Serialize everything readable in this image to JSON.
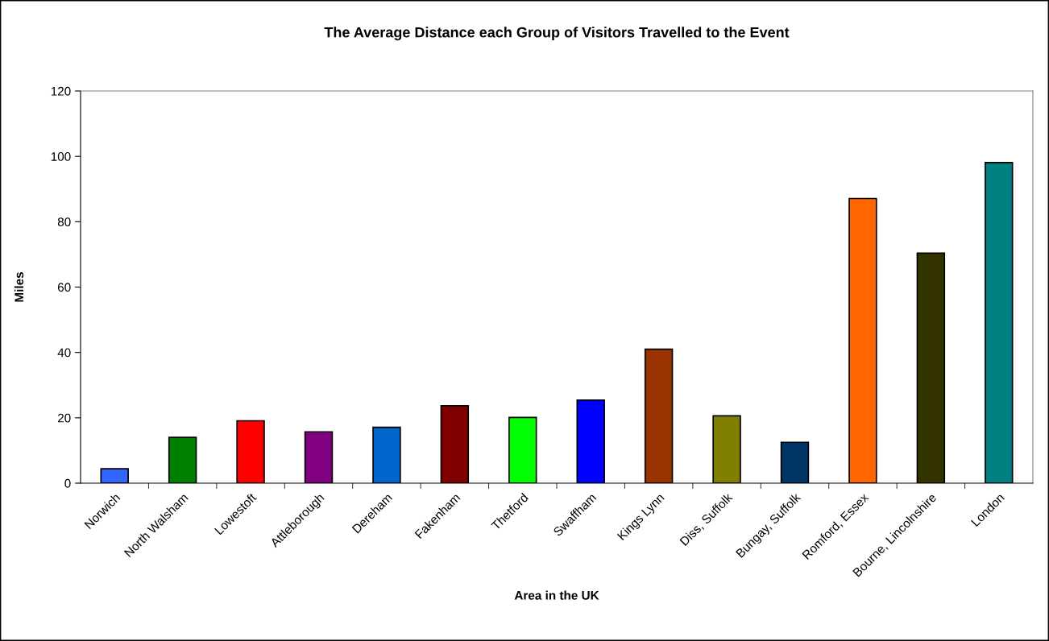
{
  "chart_data": {
    "type": "bar",
    "title": "The Average Distance each Group of Visitors Travelled to the Event",
    "xlabel": "Area in the UK",
    "ylabel": "Miles",
    "categories": [
      "Norwich",
      "North Walsham",
      "Lowestoft",
      "Attleborough",
      "Dereham",
      "Fakenham",
      "Thetford",
      "Swaffham",
      "Kings Lynn",
      "Diss, Suffolk",
      "Bungay, Suffolk",
      "Romford, Essex",
      "Bourne, Lincolnshire",
      "London"
    ],
    "values": [
      4.4,
      14.0,
      19.1,
      15.7,
      17.1,
      23.7,
      20.1,
      25.4,
      41.0,
      20.6,
      12.5,
      87.1,
      70.4,
      98.1
    ],
    "colors": [
      "#3366ff",
      "#008000",
      "#ff0000",
      "#800080",
      "#0066cc",
      "#800000",
      "#00ff00",
      "#0000ff",
      "#993300",
      "#808000",
      "#003366",
      "#ff6600",
      "#333300",
      "#008080"
    ],
    "ylim": [
      0,
      120
    ],
    "yticks": [
      0,
      20,
      40,
      60,
      80,
      100,
      120
    ],
    "grid": false
  }
}
